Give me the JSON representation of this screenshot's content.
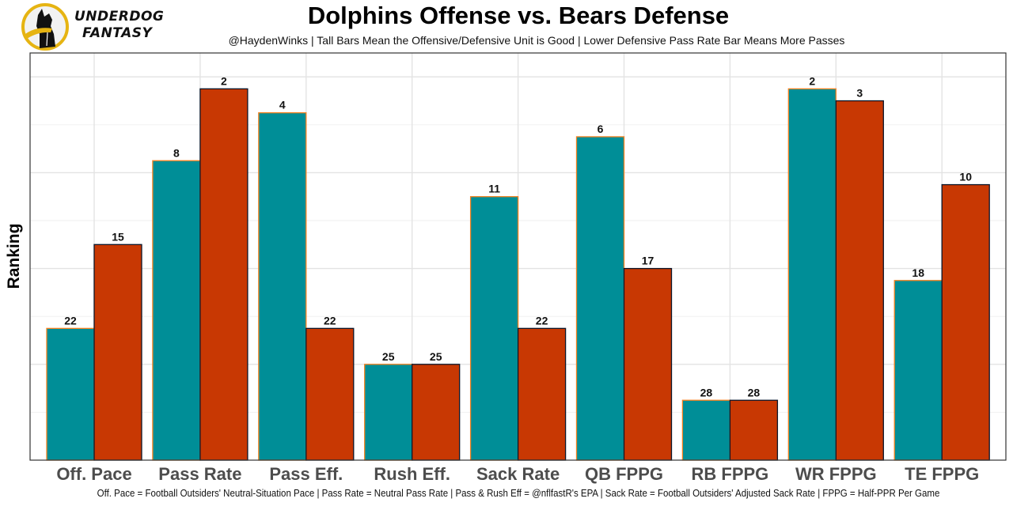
{
  "header": {
    "logo_line1": "UNDERDOG",
    "logo_line2": "FANTASY",
    "logo_icon": "dog-silhouette-icon"
  },
  "colors": {
    "offense_fill": "#008E97",
    "offense_edge": "#F58220",
    "defense_fill": "#C83803",
    "defense_edge": "#0B162A",
    "logo_ring": "#E6B412"
  },
  "chart_data": {
    "type": "bar",
    "title": "Dolphins Offense vs. Bears Defense",
    "subtitle": "@HaydenWinks | Tall Bars Mean the Offensive/Defensive Unit is Good | Lower Defensive Pass Rate Bar Means More Passes",
    "xlabel": "",
    "ylabel": "Ranking",
    "caption": "Off. Pace = Football Outsiders' Neutral-Situation Pace | Pass Rate = Neutral Pass Rate | Pass & Rush Eff = @nflfastR's EPA | Sack Rate = Football Outsiders' Adjusted Sack Rate | FPPG = Half-PPR Per Game",
    "categories": [
      "Off. Pace",
      "Pass Rate",
      "Pass Eff.",
      "Rush Eff.",
      "Sack Rate",
      "QB FPPG",
      "RB FPPG",
      "WR FPPG",
      "TE FPPG"
    ],
    "series": [
      {
        "name": "Dolphins Offense",
        "values": [
          22,
          8,
          4,
          25,
          11,
          6,
          28,
          2,
          18
        ]
      },
      {
        "name": "Bears Defense",
        "values": [
          15,
          2,
          22,
          25,
          22,
          17,
          28,
          3,
          10
        ]
      }
    ],
    "bar_height_rule": "height = 33 - rank (rank 1 is tallest)",
    "ylim_height_units": [
      0,
      34
    ],
    "y_tick_labels_shown": false,
    "grid": true,
    "legend": "none"
  }
}
